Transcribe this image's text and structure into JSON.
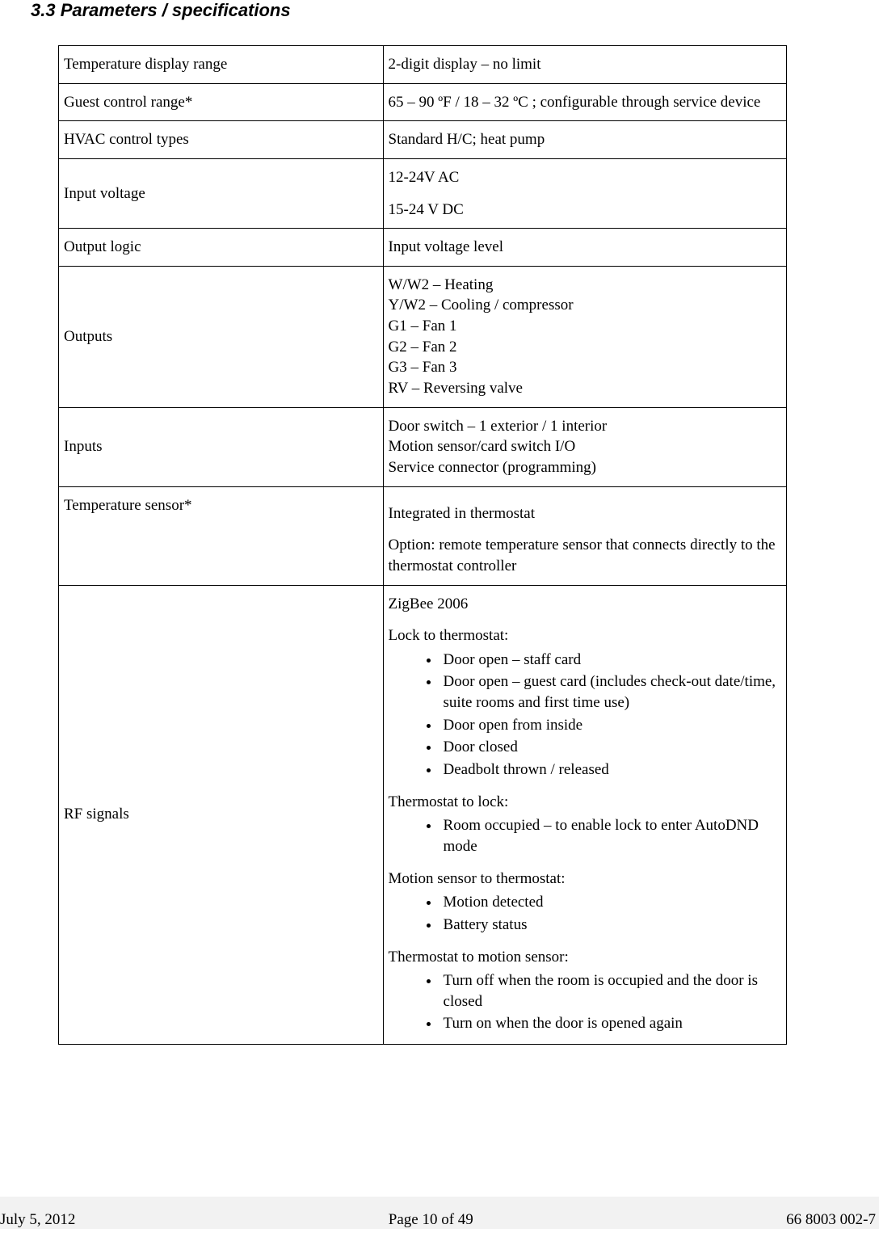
{
  "heading": "3.3 Parameters / specifications",
  "rows": [
    {
      "label": "Temperature display range",
      "value_html": "2-digit display – no limit",
      "vmid": false
    },
    {
      "label": "Guest control range*",
      "value_html": "65 – 90 ºF / 18 – 32 ºC ; configurable through service device",
      "vmid": false
    },
    {
      "label": "HVAC control types",
      "value_html": "Standard H/C; heat pump",
      "vmid": false
    },
    {
      "label": "Input voltage",
      "value_html": "<div class=\"para\">12-24V AC</div><div class=\"para\">15-24 V DC</div>",
      "vmid": true
    },
    {
      "label": "Output logic",
      "value_html": "Input voltage level",
      "vmid": false
    },
    {
      "label": "Outputs",
      "value_html": "W/W2 – Heating<br>Y/W2 – Cooling / compressor<br>G1 – Fan 1<br>G2 – Fan 2<br>G3 – Fan 3<br>RV – Reversing valve",
      "vmid": true
    },
    {
      "label": "Inputs",
      "value_html": "Door switch – 1 exterior / 1 interior<br>Motion sensor/card switch I/O<br>Service connector (programming)",
      "vmid": true
    },
    {
      "label": "Temperature sensor*",
      "value_html": "<div class=\"para\" style=\"margin-top:10px\">Integrated in thermostat</div><div class=\"para\">Option: remote temperature sensor that connects directly to the thermostat controller</div>",
      "vmid": false
    },
    {
      "label": "RF signals",
      "value_html": "<div class=\"para\">ZigBee 2006</div><div class=\"subhead\">Lock to thermostat:</div><ul class=\"bullets\"><li>Door open – staff card</li><li>Door open – guest card (includes check-out date/time, suite rooms and first time use)</li><li>Door open from inside</li><li>Door closed</li><li>Deadbolt thrown / released</li></ul><div class=\"subhead\">Thermostat to lock:</div><ul class=\"bullets\"><li>Room occupied – to enable lock to enter AutoDND mode</li></ul><div class=\"subhead\">Motion sensor to thermostat:</div><ul class=\"bullets\"><li>Motion detected</li><li>Battery status</li></ul><div class=\"subhead\">Thermostat to motion sensor:</div><ul class=\"bullets\" style=\"margin-bottom:0\"><li>Turn off when the room is occupied and the door is closed</li><li>Turn on when the door is opened again</li></ul>",
      "vmid": true
    }
  ],
  "footer": {
    "left": "July 5, 2012",
    "center": "Page 10 of 49",
    "right": "66 8003 002-7"
  }
}
